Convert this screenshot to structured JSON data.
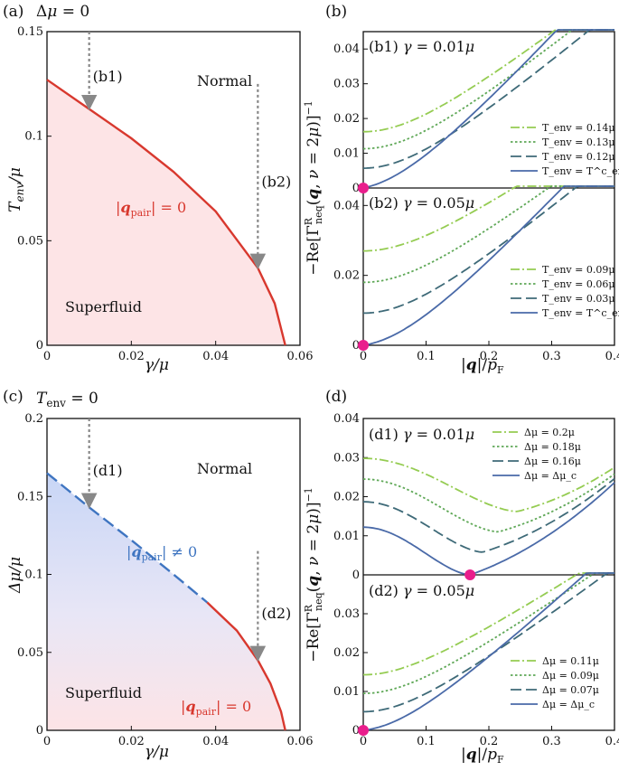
{
  "panels": {
    "a": {
      "label": "(a)",
      "title": "Δμ = 0"
    },
    "b": {
      "label": "(b)"
    },
    "c": {
      "label": "(c)",
      "title": "T_env = 0"
    },
    "d": {
      "label": "(d)"
    }
  },
  "shared": {
    "y_axis_b": "−Re[Γ^R_neq(q, ν = 2μ)]⁻¹",
    "x_axis_bd": "|q|/p_F"
  },
  "chart_data": [
    {
      "id": "a",
      "type": "line",
      "title": "Δμ = 0",
      "xlabel": "γ/μ",
      "ylabel": "T_env/μ",
      "xlim": [
        0,
        0.06
      ],
      "ylim": [
        0,
        0.15
      ],
      "xticks": [
        "0",
        "0.02",
        "0.04",
        "0.06"
      ],
      "yticks": [
        "0",
        "0.05",
        "0.1",
        "0.15"
      ],
      "series": [
        {
          "name": "|q_pair| = 0",
          "color": "#d8382e",
          "x": [
            0,
            0.01,
            0.02,
            0.03,
            0.04,
            0.05,
            0.054,
            0.0565
          ],
          "y": [
            0.127,
            0.113,
            0.099,
            0.083,
            0.064,
            0.037,
            0.02,
            0
          ]
        }
      ],
      "regions": {
        "normal": "Normal",
        "superfluid": "Superfluid"
      },
      "curve_label": "|q_pair| = 0",
      "arrows": [
        {
          "label": "(b1)",
          "x": 0.01,
          "y_from": 0.15,
          "y_to": 0.113
        },
        {
          "label": "(b2)",
          "x": 0.05,
          "y_from": 0.125,
          "y_to": 0.037
        }
      ]
    },
    {
      "id": "b1",
      "type": "line",
      "subtitle": "(b1) γ = 0.01μ",
      "xlim": [
        0,
        0.4
      ],
      "ylim": [
        0,
        0.045
      ],
      "yticks": [
        "0",
        "0.01",
        "0.02",
        "0.03",
        "0.04"
      ],
      "series": [
        {
          "name": "T_env = 0.14μ",
          "color": "#95cc52",
          "style": "dashdot",
          "intercept": 0.0162
        },
        {
          "name": "T_env = 0.13μ",
          "color": "#5fa857",
          "style": "dotted",
          "intercept": 0.0113
        },
        {
          "name": "T_env = 0.12μ",
          "color": "#3e6a78",
          "style": "dashed",
          "intercept": 0.0057
        },
        {
          "name": "T_env = T^c_env",
          "color": "#4a6aa8",
          "style": "solid",
          "intercept": 0
        }
      ],
      "marker": {
        "x": 0,
        "y": 0,
        "color": "#e91e8c"
      }
    },
    {
      "id": "b2",
      "type": "line",
      "subtitle": "(b2) γ = 0.05μ",
      "xlim": [
        0,
        0.4
      ],
      "ylim": [
        0,
        0.045
      ],
      "xlabel": "|q|/p_F",
      "xticks": [
        "0",
        "0.1",
        "0.2",
        "0.3",
        "0.4"
      ],
      "yticks": [
        "0",
        "0.02",
        "0.04"
      ],
      "series": [
        {
          "name": "T_env = 0.09μ",
          "color": "#95cc52",
          "style": "dashdot",
          "intercept": 0.027
        },
        {
          "name": "T_env = 0.06μ",
          "color": "#5fa857",
          "style": "dotted",
          "intercept": 0.018
        },
        {
          "name": "T_env = 0.03μ",
          "color": "#3e6a78",
          "style": "dashed",
          "intercept": 0.0092
        },
        {
          "name": "T_env = T^c_env",
          "color": "#4a6aa8",
          "style": "solid",
          "intercept": 0
        }
      ],
      "marker": {
        "x": 0,
        "y": 0,
        "color": "#e91e8c"
      }
    },
    {
      "id": "c",
      "type": "line",
      "title": "T_env = 0",
      "xlabel": "γ/μ",
      "ylabel": "Δμ/μ",
      "xlim": [
        0,
        0.06
      ],
      "ylim": [
        0,
        0.2
      ],
      "xticks": [
        "0",
        "0.02",
        "0.04",
        "0.06"
      ],
      "yticks": [
        "0",
        "0.05",
        "0.1",
        "0.15",
        "0.2"
      ],
      "series": [
        {
          "name": "|q_pair| ≠ 0",
          "color": "#3f75c1",
          "style": "dashed",
          "x": [
            0,
            0.01,
            0.02,
            0.03,
            0.038
          ],
          "y": [
            0.165,
            0.143,
            0.122,
            0.1,
            0.082
          ]
        },
        {
          "name": "|q_pair| = 0",
          "color": "#d8382e",
          "style": "solid",
          "x": [
            0.038,
            0.045,
            0.05,
            0.053,
            0.0555,
            0.0565
          ],
          "y": [
            0.082,
            0.064,
            0.045,
            0.03,
            0.012,
            0
          ]
        }
      ],
      "regions": {
        "normal": "Normal",
        "superfluid": "Superfluid"
      },
      "curve_labels": {
        "fflo": "|q_pair| ≠ 0",
        "uniform": "|q_pair| = 0"
      },
      "arrows": [
        {
          "label": "(d1)",
          "x": 0.01,
          "y_from": 0.2,
          "y_to": 0.143
        },
        {
          "label": "(d2)",
          "x": 0.05,
          "y_from": 0.115,
          "y_to": 0.045
        }
      ]
    },
    {
      "id": "d1",
      "type": "line",
      "subtitle": "(d1) γ = 0.01μ",
      "xlim": [
        0,
        0.4
      ],
      "ylim": [
        0,
        0.04
      ],
      "yticks": [
        "0",
        "0.01",
        "0.02",
        "0.03",
        "0.04"
      ],
      "series": [
        {
          "name": "Δμ = 0.2μ",
          "color": "#95cc52",
          "style": "dashdot",
          "y0": 0.0298,
          "qmin": 0.245,
          "ymin": 0.0162,
          "y04": 0.0275
        },
        {
          "name": "Δμ = 0.18μ",
          "color": "#5fa857",
          "style": "dotted",
          "y0": 0.0245,
          "qmin": 0.215,
          "ymin": 0.011,
          "y04": 0.0258
        },
        {
          "name": "Δμ = 0.16μ",
          "color": "#3e6a78",
          "style": "dashed",
          "y0": 0.0187,
          "qmin": 0.19,
          "ymin": 0.0058,
          "y04": 0.0246
        },
        {
          "name": "Δμ = Δμ_c",
          "color": "#4a6aa8",
          "style": "solid",
          "y0": 0.0122,
          "qmin": 0.17,
          "ymin": 0,
          "y04": 0.0236
        }
      ],
      "marker": {
        "x": 0.17,
        "y": 0,
        "color": "#e91e8c"
      }
    },
    {
      "id": "d2",
      "type": "line",
      "subtitle": "(d2) γ = 0.05μ",
      "xlim": [
        0,
        0.4
      ],
      "ylim": [
        0,
        0.04
      ],
      "xlabel": "|q|/p_F",
      "xticks": [
        "0",
        "0.1",
        "0.2",
        "0.3",
        "0.4"
      ],
      "yticks": [
        "0",
        "0.01",
        "0.02",
        "0.03"
      ],
      "series": [
        {
          "name": "Δμ = 0.11μ",
          "color": "#95cc52",
          "style": "dashdot",
          "intercept": 0.0143
        },
        {
          "name": "Δμ = 0.09μ",
          "color": "#5fa857",
          "style": "dotted",
          "intercept": 0.0095
        },
        {
          "name": "Δμ = 0.07μ",
          "color": "#3e6a78",
          "style": "dashed",
          "intercept": 0.0048
        },
        {
          "name": "Δμ = Δμ_c",
          "color": "#4a6aa8",
          "style": "solid",
          "intercept": 0
        }
      ],
      "marker": {
        "x": 0,
        "y": 0,
        "color": "#e91e8c"
      }
    }
  ]
}
